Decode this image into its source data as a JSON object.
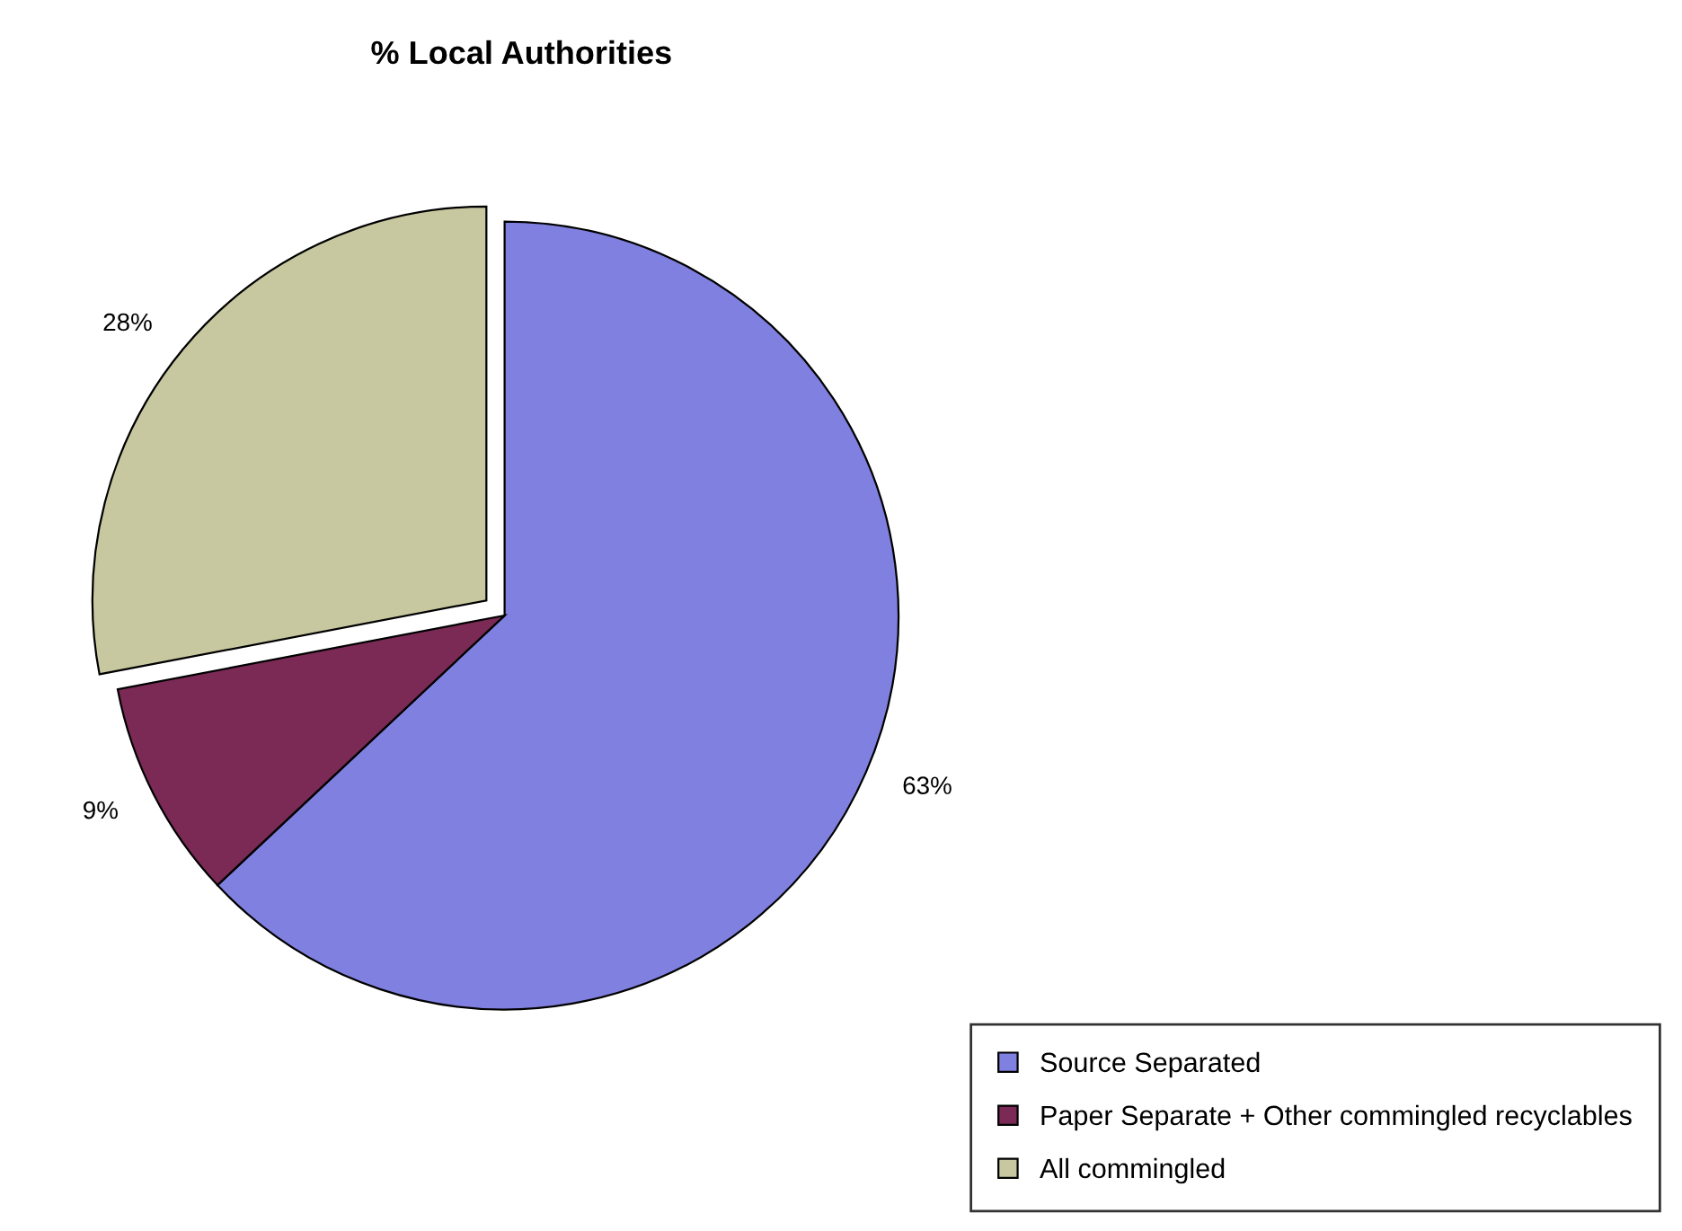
{
  "chart_data": {
    "type": "pie",
    "title": "% Local Authorities",
    "categories": [
      "Source Separated",
      "Paper Separate + Other commingled recyclables",
      "All commingled"
    ],
    "values": [
      63,
      9,
      28
    ],
    "colors": [
      "#8080e0",
      "#7a2a55",
      "#c8c8a0"
    ],
    "value_labels": [
      "63%",
      "9%",
      "28%"
    ],
    "legend": "bottom right"
  }
}
